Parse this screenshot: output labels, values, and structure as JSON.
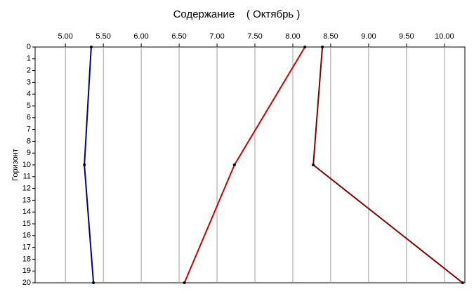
{
  "chart_data": {
    "type": "line",
    "title": "Содержание    ( Октябрь )",
    "y_label": "Горизонт",
    "y": [
      0,
      10,
      20
    ],
    "series": [
      {
        "color": "#000080",
        "values": [
          5.34,
          5.25,
          5.37
        ]
      },
      {
        "color": "#cc0000",
        "values": [
          8.16,
          7.23,
          6.57
        ]
      },
      {
        "color": "#800000",
        "values": [
          8.39,
          8.27,
          10.24
        ]
      }
    ],
    "xlim": [
      4.6,
      10.27
    ],
    "xticks": [
      {
        "value": 5,
        "label": "5.00"
      },
      {
        "value": 5.5,
        "label": "5.50"
      },
      {
        "value": 6,
        "label": "6.00"
      },
      {
        "value": 6.5,
        "label": "6.50"
      },
      {
        "value": 7,
        "label": "7.00"
      },
      {
        "value": 7.5,
        "label": "7.50"
      },
      {
        "value": 8,
        "label": "8.00"
      },
      {
        "value": 8.5,
        "label": "8.50"
      },
      {
        "value": 9,
        "label": "9.00"
      },
      {
        "value": 9.5,
        "label": "9.50"
      },
      {
        "value": 10,
        "label": "10.00"
      }
    ],
    "ylim": [
      0,
      20
    ],
    "yticks": [
      0,
      1,
      2,
      3,
      4,
      5,
      6,
      7,
      8,
      9,
      10,
      11,
      12,
      13,
      14,
      15,
      16,
      17,
      18,
      19,
      20
    ],
    "grid": true
  }
}
